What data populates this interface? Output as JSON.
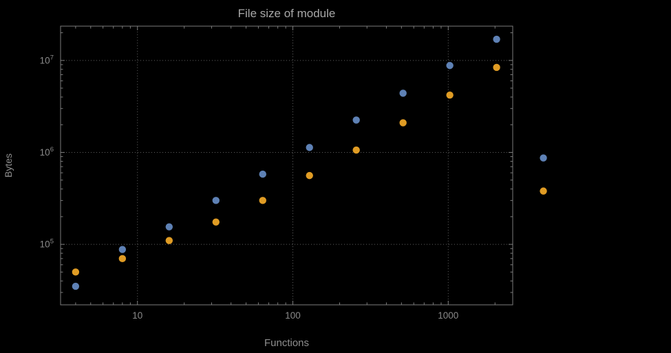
{
  "page": {
    "background": "#000000"
  },
  "chart_data": {
    "type": "scatter",
    "title": "File size of module",
    "xlabel": "Functions",
    "ylabel": "Bytes",
    "x_scale": "log",
    "y_scale": "log",
    "xlim": [
      3.2,
      2600
    ],
    "ylim": [
      22000,
      23600000
    ],
    "grid": "dotted lines at major ticks",
    "legend": "none",
    "x_ticks": [
      {
        "label": "10",
        "value": 10
      },
      {
        "label": "100",
        "value": 100
      },
      {
        "label": "1000",
        "value": 1000
      }
    ],
    "y_ticks": [
      {
        "label_base": "10",
        "label_exp": "5",
        "value": 100000
      },
      {
        "label_base": "10",
        "label_exp": "6",
        "value": 1000000
      },
      {
        "label_base": "10",
        "label_exp": "7",
        "value": 10000000
      }
    ],
    "x": [
      4,
      8,
      16,
      32,
      64,
      128,
      256,
      512,
      1024,
      2048,
      4096
    ],
    "series": [
      {
        "name": "blue",
        "color": "#5e81b5",
        "values": [
          35000,
          88000,
          155000,
          300000,
          580000,
          1130000,
          2250000,
          4400000,
          8800000,
          17000000,
          870000
        ]
      },
      {
        "name": "orange",
        "color": "#e09c24",
        "values": [
          50000,
          70000,
          110000,
          175000,
          300000,
          560000,
          1060000,
          2100000,
          4200000,
          8400000,
          380000
        ]
      }
    ]
  },
  "style": {
    "frame_color": "#7d7d7d",
    "grid_color": "#5f5f5f",
    "tick_label_color": "#8a8a8a",
    "title_color": "#a8a8a8",
    "axis_label_color": "#8f8f8f",
    "point_radius": 5.2
  }
}
